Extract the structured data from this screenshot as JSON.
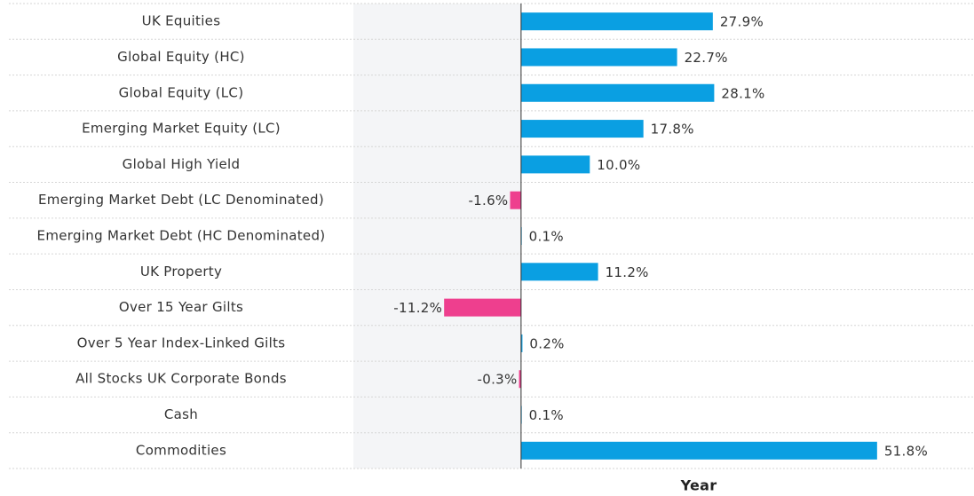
{
  "chart_data": {
    "type": "hbar",
    "categories": [
      "UK Equities",
      "Global Equity (HC)",
      "Global Equity (LC)",
      "Emerging Market Equity (LC)",
      "Global High Yield",
      "Emerging Market Debt (LC Denominated)",
      "Emerging Market Debt (HC Denominated)",
      "UK Property",
      "Over 15 Year Gilts",
      "Over 5 Year Index-Linked Gilts",
      "All Stocks UK Corporate Bonds",
      "Cash",
      "Commodities"
    ],
    "values": [
      27.9,
      22.7,
      28.1,
      17.8,
      10.0,
      -1.6,
      0.1,
      11.2,
      -11.2,
      0.2,
      -0.3,
      0.1,
      51.8
    ],
    "value_labels": [
      "27.9%",
      "22.7%",
      "28.1%",
      "17.8%",
      "10.0%",
      "-1.6%",
      "0.1%",
      "11.2%",
      "-11.2%",
      "0.2%",
      "-0.3%",
      "0.1%",
      "51.8%"
    ],
    "x_label": "Year",
    "xlim": [
      -24.4,
      65.9
    ],
    "color": "#0a9fe2",
    "negative_color": "#ee3f8e"
  }
}
